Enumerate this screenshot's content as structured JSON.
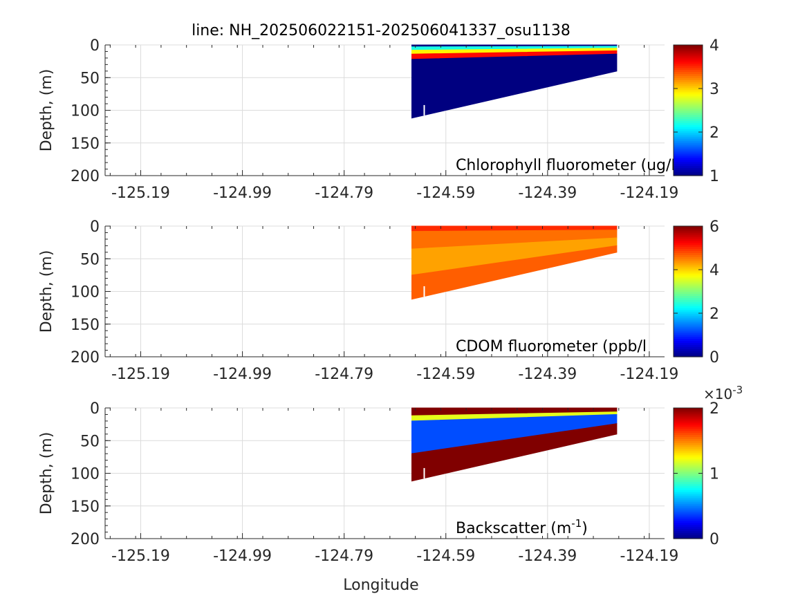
{
  "figure": {
    "title": "line: NH_202506022151-202506041337_osu1138",
    "xlabel": "Longitude"
  },
  "chart_data": [
    {
      "type": "scatter",
      "panel": "chlorophyll",
      "annotation": "Chlorophyll fluorometer (ug/L)",
      "ylabel": "Depth, (m)",
      "xlim": [
        -125.26,
        -124.16
      ],
      "ylim": [
        0,
        200
      ],
      "y_reversed": true,
      "xticks": [
        "-125.19",
        "-124.99",
        "-124.79",
        "-124.59",
        "-124.39",
        "-124.19"
      ],
      "yticks": [
        "0",
        "50",
        "100",
        "150",
        "200"
      ],
      "grid": true,
      "colormap": "jet",
      "clim": [
        1,
        4
      ],
      "colorbar_ticks": [
        "1",
        "2",
        "3",
        "4"
      ],
      "colorbar_exponent": "",
      "section": {
        "lon_west": -124.657,
        "lon_east": -124.254,
        "bottom_depth_west": 112,
        "bottom_depth_east": 40,
        "layers": [
          {
            "top_west": 0,
            "bottom_west": 3,
            "top_east": 0,
            "bottom_east": 2,
            "value": 1.0
          },
          {
            "top_west": 3,
            "bottom_west": 8,
            "top_east": 2,
            "bottom_east": 5,
            "value": 2.2
          },
          {
            "top_west": 8,
            "bottom_west": 14,
            "top_east": 5,
            "bottom_east": 9,
            "value": 2.9
          },
          {
            "top_west": 14,
            "bottom_west": 22,
            "top_east": 9,
            "bottom_east": 14,
            "value": 3.6
          },
          {
            "top_west": 22,
            "bottom_west": 112,
            "top_east": 14,
            "bottom_east": 40,
            "value": 1.0
          }
        ]
      }
    },
    {
      "type": "scatter",
      "panel": "cdom",
      "annotation": "CDOM fluorometer (ppb/l",
      "ylabel": "Depth, (m)",
      "xlim": [
        -125.26,
        -124.16
      ],
      "ylim": [
        0,
        200
      ],
      "y_reversed": true,
      "xticks": [
        "-125.19",
        "-124.99",
        "-124.79",
        "-124.59",
        "-124.39",
        "-124.19"
      ],
      "yticks": [
        "0",
        "50",
        "100",
        "150",
        "200"
      ],
      "grid": true,
      "colormap": "jet",
      "clim": [
        0,
        6
      ],
      "colorbar_ticks": [
        "0",
        "2",
        "4",
        "6"
      ],
      "colorbar_exponent": "",
      "section": {
        "lon_west": -124.657,
        "lon_east": -124.254,
        "bottom_depth_west": 112,
        "bottom_depth_east": 40,
        "layers": [
          {
            "top_west": 0,
            "bottom_west": 8,
            "top_east": 0,
            "bottom_east": 6,
            "value": 5.0
          },
          {
            "top_west": 8,
            "bottom_west": 35,
            "top_east": 6,
            "bottom_east": 18,
            "value": 4.6
          },
          {
            "top_west": 35,
            "bottom_west": 75,
            "top_east": 18,
            "bottom_east": 30,
            "value": 4.3
          },
          {
            "top_west": 75,
            "bottom_west": 112,
            "top_east": 30,
            "bottom_east": 40,
            "value": 4.7
          }
        ]
      }
    },
    {
      "type": "scatter",
      "panel": "backscatter",
      "annotation": "Backscatter (m",
      "annotation_superscript": "-1",
      "annotation_suffix": ")",
      "ylabel": "Depth, (m)",
      "xlim": [
        -125.26,
        -124.16
      ],
      "ylim": [
        0,
        200
      ],
      "y_reversed": true,
      "xticks": [
        "-125.19",
        "-124.99",
        "-124.79",
        "-124.59",
        "-124.39",
        "-124.19"
      ],
      "yticks": [
        "0",
        "50",
        "100",
        "150",
        "200"
      ],
      "grid": true,
      "colormap": "jet",
      "clim": [
        0,
        0.002
      ],
      "colorbar_ticks": [
        "0",
        "1",
        "2"
      ],
      "colorbar_exponent": "×10",
      "colorbar_exponent_sup": "-3",
      "section": {
        "lon_west": -124.657,
        "lon_east": -124.254,
        "bottom_depth_west": 112,
        "bottom_depth_east": 40,
        "layers": [
          {
            "top_west": 0,
            "bottom_west": 12,
            "top_east": 0,
            "bottom_east": 6,
            "value": 0.002
          },
          {
            "top_west": 12,
            "bottom_west": 20,
            "top_east": 6,
            "bottom_east": 10,
            "value": 0.0012
          },
          {
            "top_west": 20,
            "bottom_west": 70,
            "top_east": 10,
            "bottom_east": 24,
            "value": 0.0004
          },
          {
            "top_west": 70,
            "bottom_west": 112,
            "top_east": 24,
            "bottom_east": 40,
            "value": 0.002
          }
        ]
      }
    }
  ]
}
